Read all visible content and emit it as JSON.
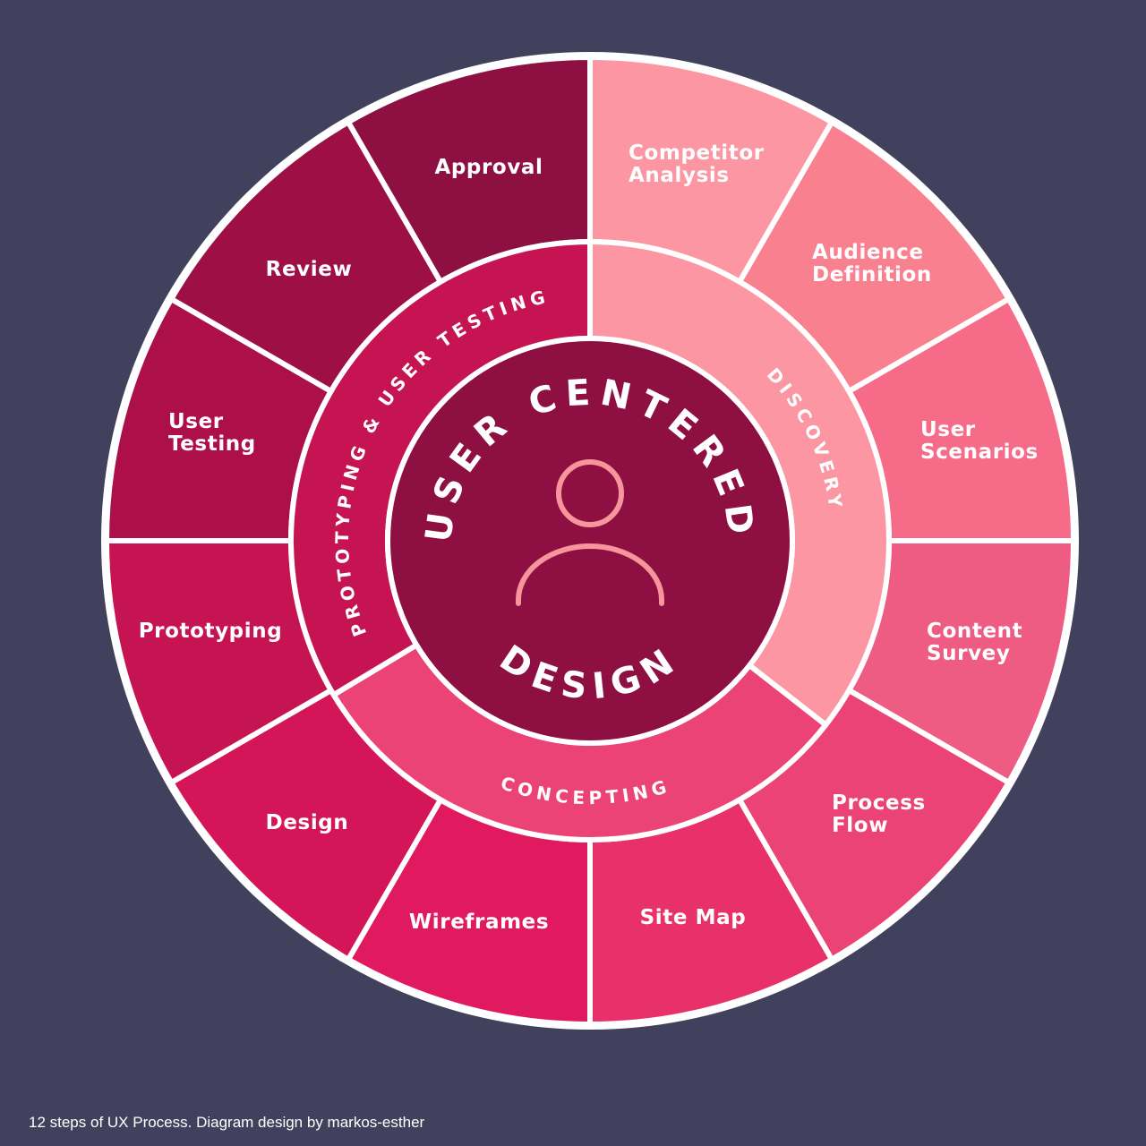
{
  "center": {
    "title_top": "USER CENTERED",
    "title_bottom": "DESIGN",
    "icon": "user-icon",
    "color": "#8e0f42",
    "icon_color": "#f7959d"
  },
  "phases": [
    {
      "id": "discovery",
      "label": "DISCOVERY",
      "color": "#fb96a2"
    },
    {
      "id": "concepting",
      "label": "CONCEPTING",
      "color": "#ec4377"
    },
    {
      "id": "prototyping",
      "label": "PROTOTYPING & USER TESTING",
      "color": "#c61452"
    }
  ],
  "steps": [
    {
      "id": "competitor-analysis",
      "lines": [
        "Competitor",
        "Analysis"
      ],
      "color": "#fb96a2"
    },
    {
      "id": "audience-definition",
      "lines": [
        "Audience",
        "Definition"
      ],
      "color": "#f9818f"
    },
    {
      "id": "user-scenarios",
      "lines": [
        "User",
        "Scenarios"
      ],
      "color": "#f56b88"
    },
    {
      "id": "content-survey",
      "lines": [
        "Content",
        "Survey"
      ],
      "color": "#ee5b83"
    },
    {
      "id": "process-flow",
      "lines": [
        "Process",
        "Flow"
      ],
      "color": "#ec4377"
    },
    {
      "id": "site-map",
      "lines": [
        "Site Map"
      ],
      "color": "#e8306b"
    },
    {
      "id": "wireframes",
      "lines": [
        "Wireframes"
      ],
      "color": "#e11a60"
    },
    {
      "id": "design",
      "lines": [
        "Design"
      ],
      "color": "#d41659"
    },
    {
      "id": "prototyping",
      "lines": [
        "Prototyping"
      ],
      "color": "#c61452"
    },
    {
      "id": "user-testing",
      "lines": [
        "User",
        "Testing"
      ],
      "color": "#ad0f48"
    },
    {
      "id": "review",
      "lines": [
        "Review"
      ],
      "color": "#9e0f46"
    },
    {
      "id": "approval",
      "lines": [
        "Approval"
      ],
      "color": "#8e0f42"
    }
  ],
  "caption": "12 steps of UX Process. Diagram design by markos-esther",
  "colors": {
    "background": "#41415d",
    "divider": "#ffffff"
  }
}
